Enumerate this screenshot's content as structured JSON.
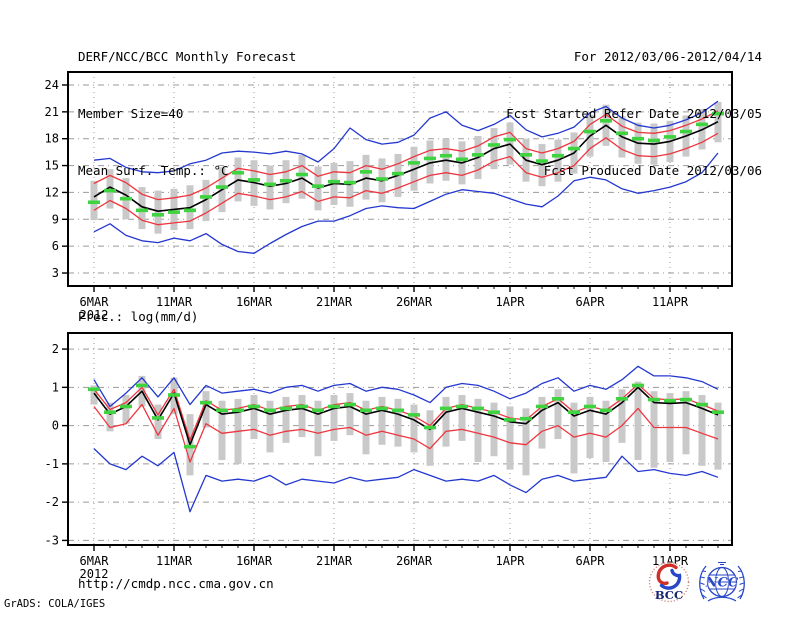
{
  "header": {
    "title": "DERF/NCC/BCC Monthly Forecast",
    "member_size": "Member Size=40",
    "top_panel_variable": "Mean Surf. Temp.: °C",
    "valid_range": "For 2012/03/06-2012/04/14",
    "fcst_refer_date": "Fcst Started Refer Date 2012/03/05",
    "fcst_produced_date": "Fcst Produced Date 2012/03/06"
  },
  "bottom_panel_variable": "Prec.: log(mm/d)",
  "footer": {
    "url": "http://cmdp.ncc.cma.gov.cn",
    "credit": "GrADS: COLA/IGES",
    "bcc_logo_text": "BCC",
    "ncc_logo_text": "NCC"
  },
  "colors": {
    "blue_minmax": "#2438d0",
    "red_band": "#ee3640",
    "black_mean": "#000000",
    "green_dash": "#3fd43f",
    "gray_bar": "#c9c9c9",
    "grid": "#9a9a9a",
    "axis": "#000000"
  },
  "chart_data": [
    {
      "type": "line",
      "title": "Mean Surf. Temp.: °C",
      "xlabel": "",
      "ylabel": "",
      "n_points": 40,
      "x_year_label": "2012",
      "x_ticks": [
        {
          "day": 0,
          "label": "6MAR"
        },
        {
          "day": 5,
          "label": "11MAR"
        },
        {
          "day": 10,
          "label": "16MAR"
        },
        {
          "day": 15,
          "label": "21MAR"
        },
        {
          "day": 20,
          "label": "26MAR"
        },
        {
          "day": 26,
          "label": "1APR"
        },
        {
          "day": 31,
          "label": "6APR"
        },
        {
          "day": 36,
          "label": "11APR"
        }
      ],
      "yticks": [
        3,
        6,
        9,
        12,
        15,
        18,
        21,
        24
      ],
      "ylim": [
        1.55,
        25.45
      ],
      "grid": true,
      "legend": "none",
      "series": [
        {
          "name": "ensemble-max",
          "color": "blue",
          "style": "line",
          "values": [
            15.6,
            15.8,
            14.8,
            14.3,
            14.2,
            14.4,
            15.2,
            15.6,
            16.4,
            16.6,
            16.5,
            16.3,
            16.6,
            16.3,
            15.4,
            16.9,
            19.2,
            17.9,
            17.4,
            17.6,
            18.4,
            20.3,
            21.0,
            19.5,
            18.9,
            19.6,
            20.6,
            19.0,
            18.2,
            18.6,
            19.3,
            20.9,
            21.6,
            20.3,
            19.5,
            19.2,
            19.5,
            20.1,
            20.9,
            22.2
          ]
        },
        {
          "name": "upper-spread-red",
          "color": "red",
          "style": "line",
          "values": [
            13.0,
            13.9,
            13.1,
            11.8,
            11.2,
            11.4,
            11.7,
            12.5,
            13.6,
            14.7,
            14.4,
            14.0,
            14.3,
            15.0,
            13.8,
            14.3,
            14.2,
            15.0,
            14.6,
            15.2,
            16.0,
            16.7,
            16.9,
            16.6,
            17.2,
            18.2,
            18.7,
            16.9,
            16.4,
            16.9,
            17.7,
            19.6,
            20.7,
            19.4,
            18.7,
            18.6,
            18.9,
            19.5,
            20.2,
            21.1
          ]
        },
        {
          "name": "ensemble-mean",
          "color": "black",
          "style": "line",
          "values": [
            11.5,
            12.6,
            11.7,
            10.4,
            9.9,
            10.1,
            10.3,
            11.2,
            12.3,
            13.4,
            13.1,
            12.7,
            13.0,
            13.6,
            12.5,
            13.0,
            12.9,
            13.6,
            13.3,
            13.9,
            14.6,
            15.3,
            15.6,
            15.3,
            15.9,
            16.9,
            17.4,
            15.6,
            15.1,
            15.6,
            16.4,
            18.3,
            19.5,
            18.2,
            17.5,
            17.4,
            17.7,
            18.3,
            19.0,
            19.9
          ]
        },
        {
          "name": "lower-spread-red",
          "color": "red",
          "style": "line",
          "values": [
            10.0,
            11.1,
            10.2,
            8.9,
            8.4,
            8.6,
            8.8,
            9.7,
            10.8,
            11.9,
            11.6,
            11.2,
            11.5,
            12.1,
            11.0,
            11.5,
            11.4,
            12.2,
            11.9,
            12.5,
            13.2,
            13.9,
            14.2,
            13.9,
            14.5,
            15.5,
            16.0,
            14.2,
            13.7,
            14.2,
            15.0,
            16.9,
            18.1,
            16.8,
            16.1,
            16.0,
            16.3,
            16.9,
            17.6,
            18.6
          ]
        },
        {
          "name": "ensemble-min",
          "color": "blue",
          "style": "line",
          "values": [
            7.6,
            8.5,
            7.2,
            6.6,
            6.4,
            6.9,
            6.6,
            7.4,
            6.2,
            5.4,
            5.2,
            6.3,
            7.3,
            8.2,
            8.8,
            8.8,
            9.4,
            10.2,
            10.5,
            10.3,
            10.2,
            11.0,
            11.8,
            12.3,
            12.1,
            11.9,
            11.3,
            10.7,
            10.4,
            11.6,
            13.3,
            13.7,
            13.4,
            12.4,
            11.9,
            12.2,
            12.6,
            13.2,
            14.2,
            16.4
          ]
        },
        {
          "name": "member-median-green",
          "color": "green",
          "style": "dash-marks",
          "values": [
            10.9,
            12.2,
            11.3,
            10.0,
            9.5,
            9.8,
            10.0,
            11.5,
            12.6,
            14.2,
            13.4,
            12.9,
            13.3,
            14.0,
            12.7,
            13.2,
            13.1,
            14.3,
            13.5,
            14.1,
            15.3,
            15.8,
            16.1,
            15.7,
            16.2,
            17.3,
            17.9,
            16.2,
            15.5,
            16.1,
            16.9,
            18.8,
            20.0,
            18.6,
            18.0,
            17.8,
            18.2,
            18.8,
            19.6,
            20.8
          ]
        }
      ],
      "spread_bars": [
        [
          8.9,
          13.3
        ],
        [
          10.2,
          14.6
        ],
        [
          9.0,
          13.6
        ],
        [
          7.9,
          12.6
        ],
        [
          7.4,
          12.2
        ],
        [
          7.8,
          12.4
        ],
        [
          7.9,
          12.8
        ],
        [
          8.8,
          13.4
        ],
        [
          9.8,
          14.8
        ],
        [
          11.0,
          15.9
        ],
        [
          10.5,
          15.6
        ],
        [
          10.1,
          15.0
        ],
        [
          10.8,
          15.6
        ],
        [
          11.3,
          16.2
        ],
        [
          10.0,
          14.9
        ],
        [
          10.6,
          15.3
        ],
        [
          10.4,
          15.5
        ],
        [
          11.2,
          16.2
        ],
        [
          10.9,
          15.8
        ],
        [
          11.5,
          16.3
        ],
        [
          12.2,
          17.1
        ],
        [
          13.0,
          17.8
        ],
        [
          13.3,
          18.0
        ],
        [
          12.9,
          17.7
        ],
        [
          13.5,
          18.3
        ],
        [
          14.6,
          19.2
        ],
        [
          15.1,
          19.8
        ],
        [
          13.2,
          18.0
        ],
        [
          12.7,
          17.4
        ],
        [
          13.2,
          17.9
        ],
        [
          14.1,
          18.7
        ],
        [
          16.0,
          20.7
        ],
        [
          17.2,
          21.8
        ],
        [
          15.9,
          20.5
        ],
        [
          15.2,
          19.8
        ],
        [
          15.1,
          19.7
        ],
        [
          15.4,
          20.0
        ],
        [
          16.0,
          20.6
        ],
        [
          16.8,
          21.3
        ],
        [
          17.6,
          22.1
        ]
      ]
    },
    {
      "type": "line",
      "title": "Prec.: log(mm/d)",
      "xlabel": "",
      "ylabel": "",
      "n_points": 40,
      "x_year_label": "2012",
      "x_ticks": [
        {
          "day": 0,
          "label": "6MAR"
        },
        {
          "day": 5,
          "label": "11MAR"
        },
        {
          "day": 10,
          "label": "16MAR"
        },
        {
          "day": 15,
          "label": "21MAR"
        },
        {
          "day": 20,
          "label": "26MAR"
        },
        {
          "day": 26,
          "label": "1APR"
        },
        {
          "day": 31,
          "label": "6APR"
        },
        {
          "day": 36,
          "label": "11APR"
        }
      ],
      "yticks": [
        -3,
        -2,
        -1,
        0,
        1,
        2
      ],
      "ylim": [
        -3.12,
        2.42
      ],
      "grid": true,
      "legend": "none",
      "series": [
        {
          "name": "ensemble-max",
          "color": "blue",
          "style": "line",
          "values": [
            1.2,
            0.5,
            0.85,
            1.25,
            0.75,
            1.25,
            0.55,
            1.05,
            0.85,
            0.9,
            0.95,
            0.85,
            1.0,
            1.05,
            0.9,
            1.05,
            1.1,
            0.9,
            1.0,
            0.95,
            0.8,
            0.6,
            1.0,
            1.1,
            1.05,
            0.9,
            0.7,
            0.85,
            1.1,
            1.25,
            0.9,
            1.05,
            0.95,
            1.2,
            1.55,
            1.3,
            1.3,
            1.25,
            1.15,
            0.95
          ]
        },
        {
          "name": "upper-spread-red",
          "color": "red",
          "style": "line",
          "values": [
            0.95,
            0.42,
            0.6,
            1.0,
            0.28,
            0.95,
            -0.38,
            0.65,
            0.4,
            0.45,
            0.55,
            0.4,
            0.5,
            0.55,
            0.4,
            0.55,
            0.6,
            0.4,
            0.5,
            0.4,
            0.25,
            0.0,
            0.45,
            0.55,
            0.45,
            0.35,
            0.2,
            0.15,
            0.5,
            0.7,
            0.35,
            0.5,
            0.4,
            0.7,
            1.08,
            0.7,
            0.68,
            0.7,
            0.55,
            0.38
          ]
        },
        {
          "name": "ensemble-mean",
          "color": "black",
          "style": "line",
          "values": [
            0.85,
            0.3,
            0.5,
            0.9,
            0.15,
            0.85,
            -0.5,
            0.55,
            0.3,
            0.35,
            0.45,
            0.3,
            0.4,
            0.45,
            0.3,
            0.45,
            0.5,
            0.3,
            0.4,
            0.3,
            0.15,
            -0.1,
            0.35,
            0.45,
            0.35,
            0.25,
            0.1,
            0.05,
            0.4,
            0.6,
            0.25,
            0.4,
            0.3,
            0.6,
            1.0,
            0.6,
            0.58,
            0.6,
            0.45,
            0.28
          ]
        },
        {
          "name": "lower-spread-red",
          "color": "red",
          "style": "line",
          "values": [
            0.5,
            -0.05,
            0.05,
            0.55,
            -0.25,
            0.45,
            -0.95,
            0.05,
            -0.2,
            -0.15,
            -0.1,
            -0.25,
            -0.15,
            -0.1,
            -0.2,
            -0.1,
            -0.05,
            -0.25,
            -0.15,
            -0.25,
            -0.35,
            -0.6,
            -0.15,
            -0.1,
            -0.2,
            -0.3,
            -0.45,
            -0.5,
            -0.15,
            0.0,
            -0.3,
            -0.2,
            -0.3,
            0.0,
            0.45,
            -0.05,
            -0.05,
            -0.05,
            -0.2,
            -0.35
          ]
        },
        {
          "name": "ensemble-min",
          "color": "blue",
          "style": "line",
          "values": [
            -0.6,
            -1.0,
            -1.15,
            -0.8,
            -1.05,
            -0.7,
            -2.25,
            -1.3,
            -1.45,
            -1.4,
            -1.45,
            -1.3,
            -1.55,
            -1.4,
            -1.45,
            -1.5,
            -1.35,
            -1.45,
            -1.4,
            -1.35,
            -1.15,
            -1.3,
            -1.45,
            -1.4,
            -1.45,
            -1.3,
            -1.55,
            -1.75,
            -1.4,
            -1.3,
            -1.45,
            -1.4,
            -1.35,
            -0.8,
            -1.2,
            -1.15,
            -1.25,
            -1.3,
            -1.2,
            -1.35
          ]
        },
        {
          "name": "member-median-green",
          "color": "green",
          "style": "dash-marks",
          "values": [
            0.95,
            0.35,
            0.5,
            1.05,
            0.2,
            0.8,
            -0.55,
            0.6,
            0.4,
            0.4,
            0.5,
            0.4,
            0.45,
            0.5,
            0.4,
            0.5,
            0.55,
            0.4,
            0.45,
            0.4,
            0.28,
            -0.05,
            0.45,
            0.5,
            0.45,
            0.35,
            0.15,
            0.18,
            0.5,
            0.7,
            0.35,
            0.5,
            0.4,
            0.7,
            1.05,
            0.68,
            0.65,
            0.68,
            0.55,
            0.35
          ]
        }
      ],
      "spread_bars": [
        [
          0.55,
          1.05
        ],
        [
          -0.15,
          0.6
        ],
        [
          0.05,
          0.8
        ],
        [
          0.5,
          1.3
        ],
        [
          -0.35,
          0.55
        ],
        [
          0.3,
          1.25
        ],
        [
          -1.3,
          0.3
        ],
        [
          -0.05,
          0.9
        ],
        [
          -0.9,
          0.65
        ],
        [
          -1.0,
          0.7
        ],
        [
          -0.35,
          0.8
        ],
        [
          -0.7,
          0.65
        ],
        [
          -0.45,
          0.75
        ],
        [
          -0.3,
          0.8
        ],
        [
          -0.8,
          0.65
        ],
        [
          -0.4,
          0.8
        ],
        [
          -0.25,
          0.85
        ],
        [
          -0.75,
          0.65
        ],
        [
          -0.5,
          0.75
        ],
        [
          -0.55,
          0.7
        ],
        [
          -0.7,
          0.55
        ],
        [
          -1.05,
          0.4
        ],
        [
          -0.55,
          0.75
        ],
        [
          -0.4,
          0.8
        ],
        [
          -0.95,
          0.7
        ],
        [
          -0.8,
          0.6
        ],
        [
          -1.15,
          0.5
        ],
        [
          -1.3,
          0.45
        ],
        [
          -0.6,
          0.75
        ],
        [
          -0.35,
          0.95
        ],
        [
          -1.25,
          0.6
        ],
        [
          -0.85,
          0.75
        ],
        [
          -0.95,
          0.65
        ],
        [
          -0.45,
          0.95
        ],
        [
          -0.9,
          1.15
        ],
        [
          -1.1,
          0.9
        ],
        [
          -0.95,
          0.85
        ],
        [
          -0.75,
          0.9
        ],
        [
          -1.05,
          0.8
        ],
        [
          -1.15,
          0.6
        ]
      ]
    }
  ]
}
